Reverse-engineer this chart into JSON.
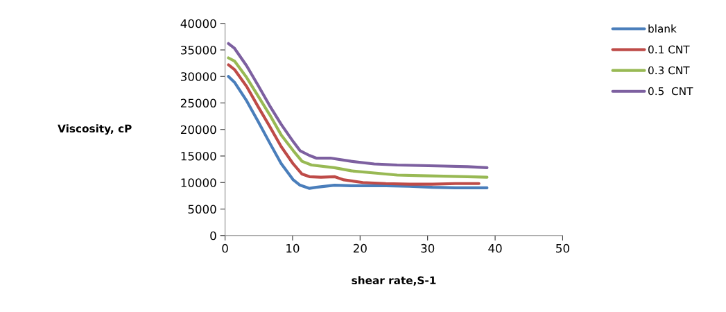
{
  "chart_data": {
    "type": "line",
    "xlabel": "shear rate,S-1",
    "ylabel": "Viscosity, cP",
    "xlim": [
      0,
      50
    ],
    "xticks": [
      0,
      10,
      20,
      30,
      40,
      50
    ],
    "ylim": [
      0,
      40000
    ],
    "yticks": [
      0,
      5000,
      10000,
      15000,
      20000,
      25000,
      30000,
      35000,
      40000
    ],
    "grid": false,
    "legend": "right",
    "marker": "none",
    "line_style": "solid",
    "series": [
      {
        "name": "blank",
        "color": "#4a7ebb",
        "x": [
          0.5,
          1.4,
          3.2,
          4.9,
          6.6,
          8.3,
          10.1,
          11.1,
          12.5,
          13.5,
          16.2,
          18.7,
          23.8,
          27.3,
          30.7,
          34.1,
          38.8
        ],
        "values": [
          30000,
          28900,
          25400,
          21500,
          17500,
          13600,
          10500,
          9500,
          8900,
          9100,
          9500,
          9400,
          9400,
          9300,
          9100,
          9000,
          9000
        ]
      },
      {
        "name": "0.1 CNT",
        "color": "#be4b48",
        "x": [
          0.5,
          1.4,
          3.2,
          4.9,
          6.6,
          8.3,
          10.1,
          11.4,
          12.5,
          14.2,
          16.2,
          17.6,
          20.4,
          23.8,
          27.3,
          30.7,
          34.1,
          37.6
        ],
        "values": [
          32200,
          31300,
          28100,
          24300,
          20600,
          16800,
          13500,
          11600,
          11100,
          11000,
          11100,
          10500,
          10000,
          9800,
          9700,
          9700,
          9800,
          9800
        ]
      },
      {
        "name": "0.3 CNT",
        "color": "#98b954",
        "x": [
          0.5,
          1.4,
          3.2,
          4.9,
          6.6,
          8.3,
          10.1,
          11.4,
          12.8,
          16.2,
          18.7,
          22.1,
          25.5,
          29.0,
          32.4,
          35.9,
          38.8
        ],
        "values": [
          33500,
          32900,
          29800,
          26300,
          22800,
          19000,
          16000,
          14000,
          13300,
          12800,
          12200,
          11800,
          11400,
          11300,
          11200,
          11100,
          11000
        ]
      },
      {
        "name": "0.5  CNT",
        "color": "#7d60a0",
        "x": [
          0.5,
          1.4,
          3.2,
          4.9,
          6.6,
          8.3,
          10.1,
          11.1,
          12.5,
          13.5,
          15.6,
          18.7,
          22.1,
          25.5,
          29.0,
          32.4,
          35.9,
          38.8
        ],
        "values": [
          36200,
          35300,
          32000,
          28300,
          24500,
          21000,
          17700,
          16000,
          15100,
          14600,
          14600,
          14000,
          13500,
          13300,
          13200,
          13100,
          13000,
          12800
        ]
      }
    ]
  }
}
